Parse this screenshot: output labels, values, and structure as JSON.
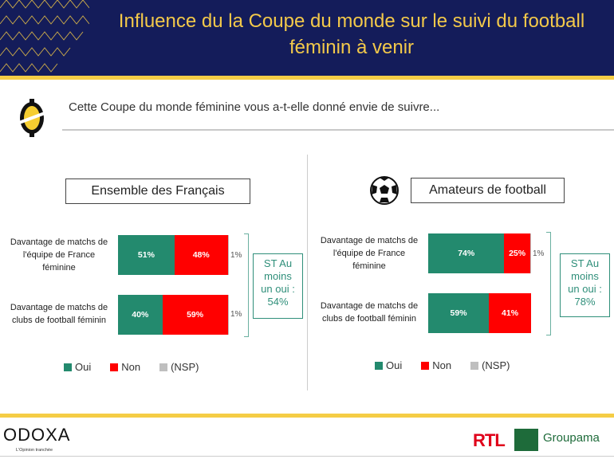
{
  "header": {
    "title_line1": "Influence du la Coupe du monde sur le suivi du football",
    "title_line2": "féminin à venir"
  },
  "question": "Cette Coupe du monde féminine vous a-t-elle donné envie de suivre...",
  "colors": {
    "oui": "#238a6e",
    "non": "#ff0000",
    "nsp": "#bfbfbf"
  },
  "chart_data": [
    {
      "type": "bar",
      "stacked": true,
      "orientation": "horizontal",
      "title": "Ensemble des Français",
      "categories": [
        "Davantage de matchs de l'équipe de France féminine",
        "Davantage de matchs de clubs de football féminin"
      ],
      "series": [
        {
          "name": "Oui",
          "values": [
            51,
            40
          ]
        },
        {
          "name": "Non",
          "values": [
            48,
            59
          ]
        },
        {
          "name": "(NSP)",
          "values": [
            1,
            1
          ]
        }
      ],
      "labels": {
        "oui": [
          "51%",
          "40%"
        ],
        "non": [
          "48%",
          "59%"
        ],
        "nsp": [
          "1%",
          "1%"
        ]
      },
      "summary": {
        "line1": "ST Au",
        "line2": "moins",
        "line3": "un oui :",
        "line4": "54%"
      },
      "legend": [
        "Oui",
        "Non",
        "(NSP)"
      ],
      "legend_position": "bottom"
    },
    {
      "type": "bar",
      "stacked": true,
      "orientation": "horizontal",
      "title": "Amateurs de football",
      "categories": [
        "Davantage de matchs de l'équipe de France féminine",
        "Davantage de matchs de clubs de football féminin"
      ],
      "series": [
        {
          "name": "Oui",
          "values": [
            74,
            59
          ]
        },
        {
          "name": "Non",
          "values": [
            25,
            41
          ]
        },
        {
          "name": "(NSP)",
          "values": [
            1,
            0
          ]
        }
      ],
      "labels": {
        "oui": [
          "74%",
          "59%"
        ],
        "non": [
          "25%",
          "41%"
        ],
        "nsp": [
          "1%",
          ""
        ]
      },
      "summary": {
        "line1": "ST Au",
        "line2": "moins",
        "line3": "un oui :",
        "line4": "78%"
      },
      "legend": [
        "Oui",
        "Non",
        "(NSP)"
      ],
      "legend_position": "bottom"
    }
  ],
  "row_labels": {
    "r1": [
      "Davantage de matchs de",
      "l'équipe de France",
      "féminine"
    ],
    "r2": [
      "Davantage de matchs de",
      "clubs de football féminin"
    ]
  },
  "footer": {
    "odoxa": "ODOXA",
    "tagline": "L'Opinion tranchée",
    "rtl": "RTL",
    "groupama": "Groupama"
  }
}
